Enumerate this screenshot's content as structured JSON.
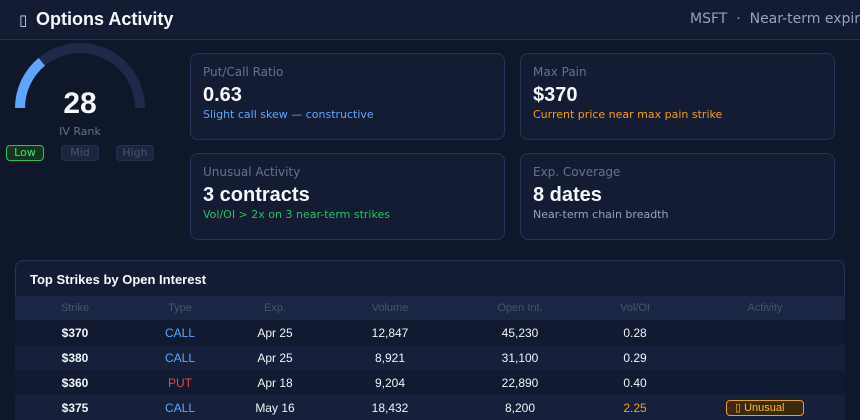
{
  "header": {
    "icon": "chart-icon",
    "title": "Options Activity",
    "ticker": "MSFT",
    "separator": "·",
    "subtitle": "Near-term expirations"
  },
  "gauge": {
    "value": "28",
    "label": "IV Rank",
    "percent": 28,
    "accent": "#60a5fa",
    "levels": [
      "Low",
      "Mid",
      "High"
    ],
    "active_level": "Low"
  },
  "cards": [
    {
      "label": "Put/Call Ratio",
      "value": "0.63",
      "sub": "Slight call skew — constructive",
      "sub_color": "#60a5fa"
    },
    {
      "label": "Max Pain",
      "value": "$370",
      "sub": "Current price near max pain strike",
      "sub_color": "#f59e0b"
    },
    {
      "label": "Unusual Activity",
      "value": "3 contracts",
      "sub": "Vol/OI > 2x on 3 near-term strikes",
      "sub_color": "#22c55e"
    },
    {
      "label": "Exp. Coverage",
      "value": "8 dates",
      "sub": "Near-term chain breadth",
      "sub_color": "#94a3b8"
    }
  ],
  "table": {
    "title": "Top Strikes by Open Interest",
    "columns": [
      "Strike",
      "Type",
      "Exp.",
      "Volume",
      "Open Int.",
      "Vol/OI",
      "Activity"
    ],
    "rows": [
      {
        "strike": "$370",
        "type": "CALL",
        "exp": "Apr 25",
        "volume": "12,847",
        "oi": "45,230",
        "ratio": "0.28",
        "activity": ""
      },
      {
        "strike": "$380",
        "type": "CALL",
        "exp": "Apr 25",
        "volume": "8,921",
        "oi": "31,100",
        "ratio": "0.29",
        "activity": ""
      },
      {
        "strike": "$360",
        "type": "PUT",
        "exp": "Apr 18",
        "volume": "9,204",
        "oi": "22,890",
        "ratio": "0.40",
        "activity": ""
      },
      {
        "strike": "$375",
        "type": "CALL",
        "exp": "May 16",
        "volume": "18,432",
        "oi": "8,200",
        "ratio": "2.25",
        "activity": "Unusual"
      }
    ]
  },
  "colors": {
    "call": "#60a5fa",
    "put": "#ef4444",
    "unusual": "#f59e0b"
  }
}
